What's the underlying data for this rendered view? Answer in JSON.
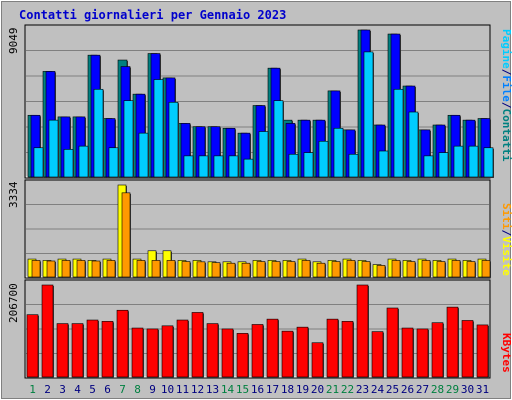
{
  "colors": {
    "background": "#c0c0c0",
    "title": "#0000cc",
    "border": "#000000",
    "grid": "#808080",
    "visite": "#0000ff",
    "pagine": "#00ccff",
    "file": "#0080ff",
    "contatti": "#008080",
    "visite_sep": "#ffff00",
    "siti": "#ff9900",
    "kbytes": "#ff0000",
    "day_weekday": "#000080",
    "day_weekend": "#008040"
  },
  "chart_data": {
    "type": "bar",
    "title": "Contatti giornalieri per Gennaio 2023",
    "categories": [
      "1",
      "2",
      "3",
      "4",
      "5",
      "6",
      "7",
      "8",
      "9",
      "10",
      "11",
      "12",
      "13",
      "14",
      "15",
      "16",
      "17",
      "18",
      "19",
      "20",
      "21",
      "22",
      "23",
      "24",
      "25",
      "26",
      "27",
      "28",
      "29",
      "30",
      "31"
    ],
    "weekend_days": [
      "1",
      "7",
      "8",
      "14",
      "15",
      "21",
      "22",
      "28",
      "29"
    ],
    "panels": [
      {
        "id": "contatti",
        "max_label": "9049",
        "ymax": 9049,
        "legend": [
          {
            "text": "Pagine",
            "color": "#00ccff"
          },
          {
            "text": "/",
            "color": "#000080"
          },
          {
            "text": "File",
            "color": "#0080ff"
          },
          {
            "text": "/",
            "color": "#000080"
          },
          {
            "text": "Contatti",
            "color": "#008080"
          }
        ],
        "series": [
          {
            "name": "Contatti",
            "color": "#008080",
            "values": [
              3800,
              6500,
              3700,
              3700,
              7500,
              3600,
              7200,
              5100,
              7600,
              6100,
              3300,
              3100,
              3100,
              3000,
              2700,
              4400,
              6700,
              3500,
              3500,
              3500,
              5300,
              2900,
              9049,
              3200,
              8800,
              5600,
              2900,
              3200,
              3800,
              3500,
              3600
            ]
          },
          {
            "name": "File",
            "color": "#0000ff",
            "values": [
              3800,
              6500,
              3700,
              3700,
              7500,
              3600,
              6800,
              5100,
              7600,
              6100,
              3300,
              3100,
              3100,
              3000,
              2700,
              4400,
              6700,
              3300,
              3500,
              3500,
              5300,
              2900,
              9049,
              3200,
              8800,
              5600,
              2900,
              3200,
              3800,
              3500,
              3600
            ]
          },
          {
            "name": "Pagine",
            "color": "#00ccff",
            "values": [
              1800,
              3500,
              1700,
              1900,
              5400,
              1800,
              4700,
              2700,
              6000,
              4600,
              1300,
              1300,
              1300,
              1300,
              1100,
              2800,
              4700,
              1400,
              1500,
              2200,
              3000,
              1400,
              7700,
              1600,
              5400,
              4000,
              1300,
              1500,
              1900,
              1900,
              1800
            ]
          }
        ]
      },
      {
        "id": "visite",
        "max_label": "3334",
        "ymax": 3334,
        "legend": [
          {
            "text": "Siti",
            "color": "#ff9900"
          },
          {
            "text": "/",
            "color": "#000080"
          },
          {
            "text": "Visite",
            "color": "#ffff00"
          }
        ],
        "series": [
          {
            "name": "Visite",
            "color": "#ffff00",
            "values": [
              650,
              600,
              650,
              650,
              600,
              650,
              3334,
              650,
              950,
              950,
              600,
              600,
              550,
              550,
              550,
              600,
              600,
              600,
              650,
              550,
              600,
              650,
              600,
              450,
              650,
              600,
              650,
              600,
              650,
              600,
              650
            ]
          },
          {
            "name": "Siti",
            "color": "#ff9900",
            "values": [
              600,
              580,
              600,
              600,
              580,
              600,
              3050,
              600,
              600,
              600,
              560,
              550,
              520,
              500,
              500,
              560,
              560,
              560,
              600,
              500,
              560,
              600,
              560,
              420,
              600,
              560,
              600,
              560,
              600,
              560,
              600
            ]
          }
        ]
      },
      {
        "id": "kbytes",
        "max_label": "206700",
        "ymax": 206700,
        "legend": [
          {
            "text": "KBytes",
            "color": "#ff0000"
          }
        ],
        "series": [
          {
            "name": "KBytes",
            "color": "#ff0000",
            "values": [
              140000,
              206700,
              120000,
              120000,
              128000,
              125000,
              150000,
              110000,
              108000,
              115000,
              128000,
              145000,
              120000,
              108000,
              98000,
              118000,
              130000,
              103000,
              112000,
              77000,
              130000,
              125000,
              206700,
              102000,
              155000,
              110000,
              108000,
              122000,
              157000,
              127000,
              117000
            ]
          }
        ]
      }
    ]
  }
}
